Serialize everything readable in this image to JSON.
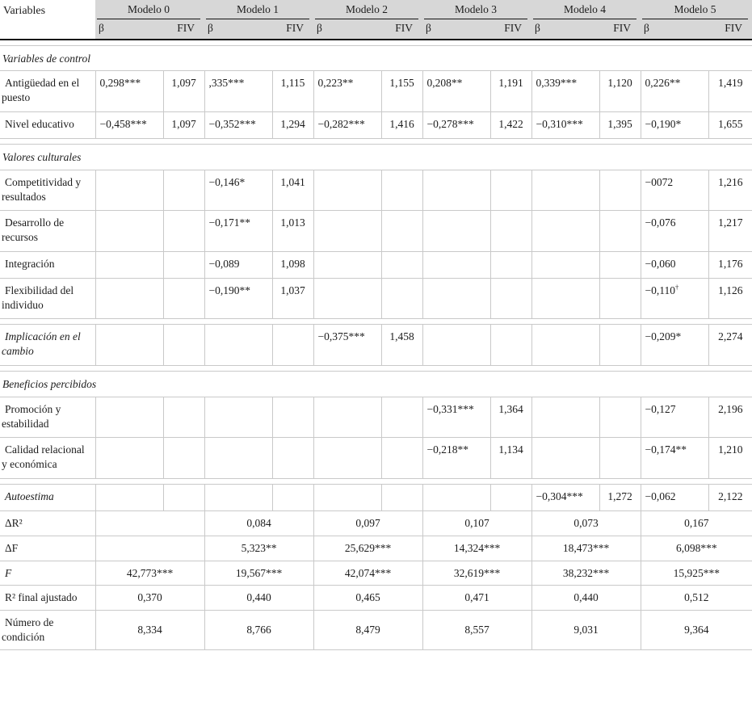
{
  "colors": {
    "header_bg": "#d7d7d7",
    "grid_line": "#c9c9c9",
    "rule_line": "#141414"
  },
  "table": {
    "corner_label": "Variables",
    "models": [
      "Modelo 0",
      "Modelo 1",
      "Modelo 2",
      "Modelo 3",
      "Modelo 4",
      "Modelo 5"
    ],
    "subheaders": {
      "beta": "β",
      "fiv": "FIV"
    },
    "rows": [
      {
        "type": "spacer"
      },
      {
        "type": "section",
        "label": "Variables de control"
      },
      {
        "type": "data",
        "label": "Antigüedad en el puesto",
        "cells": [
          "0,298***",
          "1,097",
          ",335***",
          "1,115",
          "0,223**",
          "1,155",
          "0,208**",
          "1,191",
          "0,339***",
          "1,120",
          "0,226**",
          "1,419"
        ]
      },
      {
        "type": "data",
        "label": "Nivel educativo",
        "cells": [
          "−0,458***",
          "1,097",
          "−0,352***",
          "1,294",
          "−0,282***",
          "1,416",
          "−0,278***",
          "1,422",
          "−0,310***",
          "1,395",
          "−0,190*",
          "1,655"
        ]
      },
      {
        "type": "spacer"
      },
      {
        "type": "section",
        "label": "Valores culturales"
      },
      {
        "type": "data",
        "label": "Competitividad y resultados",
        "cells": [
          "",
          "",
          "−0,146*",
          "1,041",
          "",
          "",
          "",
          "",
          "",
          "",
          "−0072",
          "1,216"
        ]
      },
      {
        "type": "data",
        "label": "Desarrollo de recursos",
        "cells": [
          "",
          "",
          "−0,171**",
          "1,013",
          "",
          "",
          "",
          "",
          "",
          "",
          "−0,076",
          "1,217"
        ]
      },
      {
        "type": "data",
        "label": "Integración",
        "cells": [
          "",
          "",
          "−0,089",
          "1,098",
          "",
          "",
          "",
          "",
          "",
          "",
          "−0,060",
          "1,176"
        ]
      },
      {
        "type": "data",
        "label": "Flexibilidad del individuo",
        "cells": [
          "",
          "",
          "−0,190**",
          "1,037",
          "",
          "",
          "",
          "",
          "",
          "",
          "−0,110†",
          "1,126"
        ]
      },
      {
        "type": "spacer"
      },
      {
        "type": "data",
        "italic": true,
        "label": "Implicación en el cambio",
        "cells": [
          "",
          "",
          "",
          "",
          "−0,375***",
          "1,458",
          "",
          "",
          "",
          "",
          "−0,209*",
          "2,274"
        ]
      },
      {
        "type": "spacer"
      },
      {
        "type": "section",
        "label": "Beneficios percibidos"
      },
      {
        "type": "data",
        "label": "Promoción y estabilidad",
        "cells": [
          "",
          "",
          "",
          "",
          "",
          "",
          "−0,331***",
          "1,364",
          "",
          "",
          "−0,127",
          "2,196"
        ]
      },
      {
        "type": "data",
        "label": "Calidad relacional y económica",
        "cells": [
          "",
          "",
          "",
          "",
          "",
          "",
          "−0,218**",
          "1,134",
          "",
          "",
          "−0,174**",
          "1,210"
        ]
      },
      {
        "type": "spacer"
      },
      {
        "type": "data",
        "italic": true,
        "label": "Autoestima",
        "cells": [
          "",
          "",
          "",
          "",
          "",
          "",
          "",
          "",
          "−0,304***",
          "1,272",
          "−0,062",
          "2,122"
        ]
      },
      {
        "type": "summary",
        "label": "ΔR²",
        "values": [
          "",
          "0,084",
          "0,097",
          "0,107",
          "0,073",
          "0,167"
        ]
      },
      {
        "type": "summary",
        "label": "ΔF",
        "values": [
          "",
          "5,323**",
          "25,629***",
          "14,324***",
          "18,473***",
          "6,098***"
        ]
      },
      {
        "type": "summary",
        "italic": true,
        "label": "F",
        "values": [
          "42,773***",
          "19,567***",
          "42,074***",
          "32,619***",
          "38,232***",
          "15,925***"
        ]
      },
      {
        "type": "summary",
        "label": "R² final ajustado",
        "values": [
          "0,370",
          "0,440",
          "0,465",
          "0,471",
          "0,440",
          "0,512"
        ]
      },
      {
        "type": "summary",
        "label": "Número de condición",
        "values": [
          "8,334",
          "8,766",
          "8,479",
          "8,557",
          "9,031",
          "9,364"
        ]
      }
    ]
  }
}
